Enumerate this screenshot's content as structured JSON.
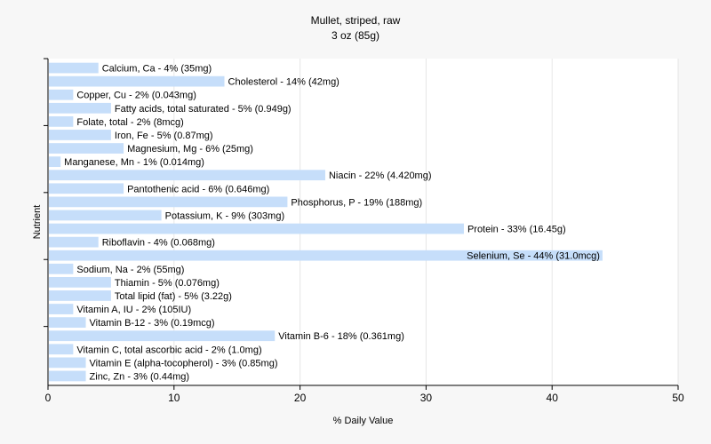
{
  "chart_data": {
    "type": "bar",
    "orientation": "horizontal",
    "title": "Mullet, striped, raw",
    "subtitle": "3 oz (85g)",
    "xlabel": "% Daily Value",
    "ylabel": "Nutrient",
    "xlim": [
      0,
      50
    ],
    "xticks": [
      0,
      10,
      20,
      30,
      40,
      50
    ],
    "grid": true,
    "bar_color": "#c6defa",
    "categories": [
      "Calcium, Ca",
      "Cholesterol",
      "Copper, Cu",
      "Fatty acids, total saturated",
      "Folate, total",
      "Iron, Fe",
      "Magnesium, Mg",
      "Manganese, Mn",
      "Niacin",
      "Pantothenic acid",
      "Phosphorus, P",
      "Potassium, K",
      "Protein",
      "Riboflavin",
      "Selenium, Se",
      "Sodium, Na",
      "Thiamin",
      "Total lipid (fat)",
      "Vitamin A, IU",
      "Vitamin B-12",
      "Vitamin B-6",
      "Vitamin C, total ascorbic acid",
      "Vitamin E (alpha-tocopherol)",
      "Zinc, Zn"
    ],
    "values": [
      4,
      14,
      2,
      5,
      2,
      5,
      6,
      1,
      22,
      6,
      19,
      9,
      33,
      4,
      44,
      2,
      5,
      5,
      2,
      3,
      18,
      2,
      3,
      3
    ],
    "labels": [
      "Calcium, Ca - 4% (35mg)",
      "Cholesterol - 14% (42mg)",
      "Copper, Cu - 2% (0.043mg)",
      "Fatty acids, total saturated - 5% (0.949g)",
      "Folate, total - 2% (8mcg)",
      "Iron, Fe - 5% (0.87mg)",
      "Magnesium, Mg - 6% (25mg)",
      "Manganese, Mn - 1% (0.014mg)",
      "Niacin - 22% (4.420mg)",
      "Pantothenic acid - 6% (0.646mg)",
      "Phosphorus, P - 19% (188mg)",
      "Potassium, K - 9% (303mg)",
      "Protein - 33% (16.45g)",
      "Riboflavin - 4% (0.068mg)",
      "Selenium, Se - 44% (31.0mcg)",
      "Sodium, Na - 2% (55mg)",
      "Thiamin - 5% (0.076mg)",
      "Total lipid (fat) - 5% (3.22g)",
      "Vitamin A, IU - 2% (105IU)",
      "Vitamin B-12 - 3% (0.19mcg)",
      "Vitamin B-6 - 18% (0.361mg)",
      "Vitamin C, total ascorbic acid - 2% (1.0mg)",
      "Vitamin E (alpha-tocopherol) - 3% (0.85mg)",
      "Zinc, Zn - 3% (0.44mg)"
    ]
  }
}
